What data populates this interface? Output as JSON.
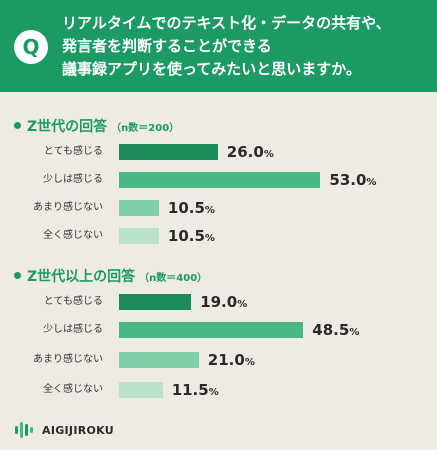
{
  "question": {
    "badge": "Q",
    "lines": [
      "リアルタイムでのテキスト化・データの共有や、",
      "発言者を判断することができる",
      "議事録アプリを使ってみたいと思いますか。"
    ]
  },
  "colors": {
    "header": "#1c9a64",
    "bar_scale": [
      "#1d8c5b",
      "#46b883",
      "#7ecfa8",
      "#b8e2cc"
    ]
  },
  "logo": {
    "text": "AIGIJIROKU",
    "icon": "aigijiroku-leaf-logo"
  },
  "chart_data": [
    {
      "type": "bar",
      "orientation": "horizontal",
      "title": "Z世代の回答",
      "subtitle": "（n数＝200）",
      "categories": [
        "とても感じる",
        "少しは感じる",
        "あまり感じない",
        "全く感じない"
      ],
      "values": [
        26.0,
        53.0,
        10.5,
        10.5
      ],
      "value_labels": [
        "26.0",
        "53.0",
        "10.5",
        "10.5"
      ],
      "unit": "%",
      "xlim": [
        0,
        100
      ],
      "grid": false
    },
    {
      "type": "bar",
      "orientation": "horizontal",
      "title": "Z世代以上の回答",
      "subtitle": "（n数＝400）",
      "categories": [
        "とても感じる",
        "少しは感じる",
        "あまり感じない",
        "全く感じない"
      ],
      "values": [
        19.0,
        48.5,
        21.0,
        11.5
      ],
      "value_labels": [
        "19.0",
        "48.5",
        "21.0",
        "11.5"
      ],
      "unit": "%",
      "xlim": [
        0,
        100
      ],
      "grid": false
    }
  ]
}
